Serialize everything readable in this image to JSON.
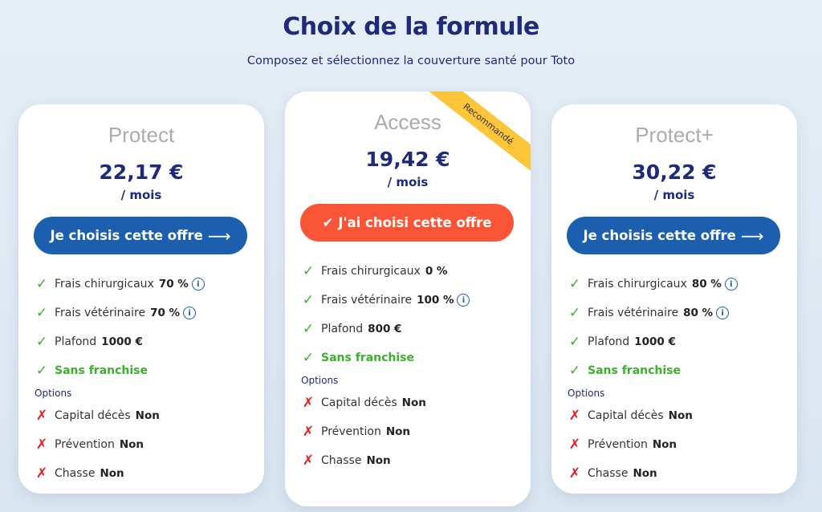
{
  "header": {
    "title": "Choix de la formule",
    "subtitle": "Composez et sélectionnez la couverture santé pour Toto"
  },
  "colors": {
    "navy": "#1f2a7a",
    "button_blue": "#1b5fae",
    "selected_orange": "#fa5536",
    "ribbon": "#fcc53a",
    "check": "#3cae2c",
    "cross": "#e21d1d"
  },
  "cards": [
    {
      "name": "Protect",
      "price": "22,17 €",
      "per": "/ mois",
      "button": "Je choisis cette offre",
      "selected": false,
      "features": [
        {
          "label": "Frais chirurgicaux",
          "value": "70 %",
          "info": true
        },
        {
          "label": "Frais vétérinaire",
          "value": "70 %",
          "info": true
        },
        {
          "label": "Plafond",
          "value": "1000 €"
        },
        {
          "label": "Sans franchise",
          "highlight": true
        }
      ],
      "options_label": "Options",
      "options": [
        {
          "label": "Capital décès",
          "value": "Non"
        },
        {
          "label": "Prévention",
          "value": "Non"
        },
        {
          "label": "Chasse",
          "value": "Non"
        }
      ]
    },
    {
      "name": "Access",
      "price": "19,42 €",
      "per": "/ mois",
      "button": "J'ai choisi cette offre",
      "selected": true,
      "ribbon": "Recommandé",
      "features": [
        {
          "label": "Frais chirurgicaux",
          "value": "0 %"
        },
        {
          "label": "Frais vétérinaire",
          "value": "100 %",
          "info": true
        },
        {
          "label": "Plafond",
          "value": "800 €"
        },
        {
          "label": "Sans franchise",
          "highlight": true
        }
      ],
      "options_label": "Options",
      "options": [
        {
          "label": "Capital décès",
          "value": "Non"
        },
        {
          "label": "Prévention",
          "value": "Non"
        },
        {
          "label": "Chasse",
          "value": "Non"
        }
      ]
    },
    {
      "name": "Protect+",
      "price": "30,22 €",
      "per": "/ mois",
      "button": "Je choisis cette offre",
      "selected": false,
      "features": [
        {
          "label": "Frais chirurgicaux",
          "value": "80 %",
          "info": true
        },
        {
          "label": "Frais vétérinaire",
          "value": "80 %",
          "info": true
        },
        {
          "label": "Plafond",
          "value": "1000 €"
        },
        {
          "label": "Sans franchise",
          "highlight": true
        }
      ],
      "options_label": "Options",
      "options": [
        {
          "label": "Capital décès",
          "value": "Non"
        },
        {
          "label": "Prévention",
          "value": "Non"
        },
        {
          "label": "Chasse",
          "value": "Non"
        }
      ]
    }
  ]
}
